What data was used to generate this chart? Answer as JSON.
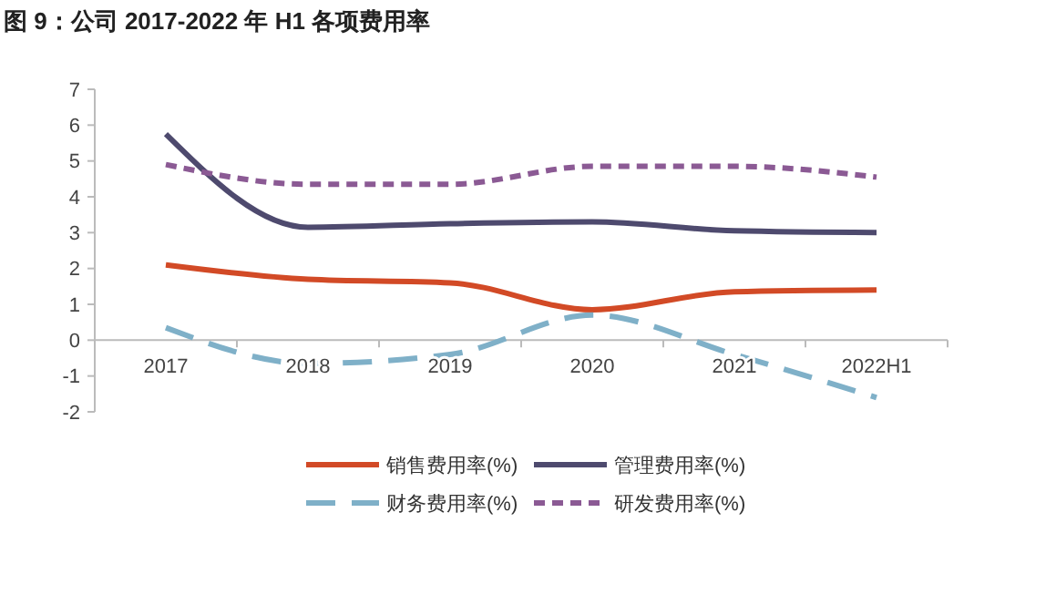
{
  "chart_data": {
    "type": "line",
    "title": "图 9：公司 2017-2022 年 H1 各项费用率",
    "categories": [
      "2017",
      "2018",
      "2019",
      "2020",
      "2021",
      "2022H1"
    ],
    "series": [
      {
        "name": "销售费用率(%)",
        "color": "#d24a26",
        "line_style": "solid",
        "values": [
          2.1,
          1.7,
          1.6,
          0.85,
          1.35,
          1.4
        ]
      },
      {
        "name": "管理费用率(%)",
        "color": "#4e4a6e",
        "line_style": "solid",
        "values": [
          5.75,
          3.15,
          3.25,
          3.3,
          3.05,
          3.0
        ]
      },
      {
        "name": "财务费用率(%)",
        "color": "#7fb0c8",
        "line_style": "dashed",
        "values": [
          0.35,
          -0.65,
          -0.4,
          0.7,
          -0.4,
          -1.6
        ]
      },
      {
        "name": "研发费用率(%)",
        "color": "#8b5a94",
        "line_style": "dotted",
        "values": [
          4.9,
          4.35,
          4.35,
          4.85,
          4.85,
          4.55
        ]
      }
    ],
    "ylim": [
      -2,
      7
    ],
    "yticks": [
      -2,
      -1,
      0,
      1,
      2,
      3,
      4,
      5,
      6,
      7
    ],
    "grid": false,
    "legend": "bottom",
    "marker": "none"
  }
}
